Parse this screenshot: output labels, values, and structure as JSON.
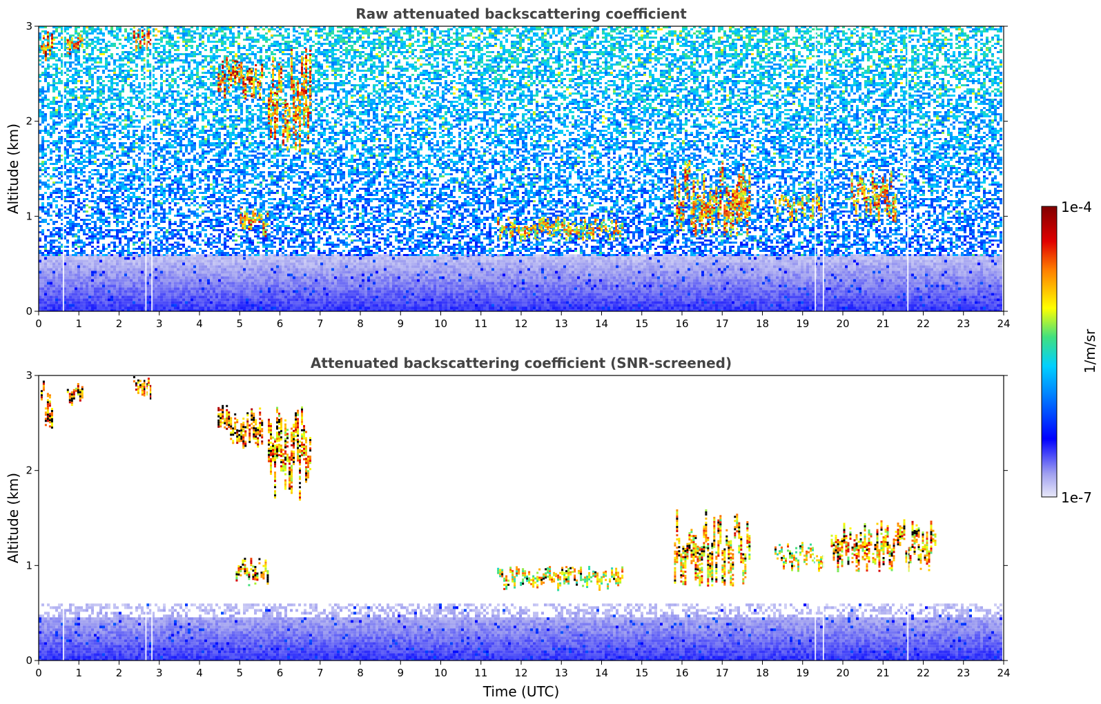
{
  "chart_data": [
    {
      "type": "heatmap",
      "title": "Raw attenuated backscattering coefficient",
      "xlabel": "",
      "ylabel": "Altitude (km)",
      "xlim": [
        0,
        24
      ],
      "ylim": [
        0,
        3
      ],
      "x_ticks": [
        "0",
        "1",
        "2",
        "3",
        "4",
        "5",
        "6",
        "7",
        "8",
        "9",
        "10",
        "11",
        "12",
        "13",
        "14",
        "15",
        "16",
        "17",
        "18",
        "19",
        "20",
        "21",
        "22",
        "23",
        "24"
      ],
      "y_ticks": [
        "0",
        "1",
        "2",
        "3"
      ],
      "features": [
        {
          "name": "surface layer",
          "time": [
            0,
            23.9
          ],
          "altitude": [
            0.0,
            0.06
          ],
          "level": 0.35
        },
        {
          "name": "boundary layer haze",
          "time": [
            0,
            23.9
          ],
          "altitude": [
            0.0,
            0.6
          ],
          "level": 0.12
        },
        {
          "name": "noise",
          "time": [
            0,
            23.9
          ],
          "altitude": [
            0.6,
            3.0
          ],
          "level": 0.3
        },
        {
          "name": "cloud",
          "time": [
            0.05,
            0.35
          ],
          "altitude": [
            2.55,
            2.95
          ],
          "level": 0.97
        },
        {
          "name": "cloud",
          "time": [
            0.7,
            1.1
          ],
          "altitude": [
            2.7,
            2.92
          ],
          "level": 0.95
        },
        {
          "name": "cloud",
          "time": [
            2.35,
            2.8
          ],
          "altitude": [
            2.75,
            3.0
          ],
          "level": 0.97
        },
        {
          "name": "cloud",
          "time": [
            4.45,
            5.55
          ],
          "altitude": [
            2.25,
            2.7
          ],
          "level": 0.97
        },
        {
          "name": "cloud",
          "time": [
            5.7,
            6.75
          ],
          "altitude": [
            1.7,
            2.8
          ],
          "level": 0.93
        },
        {
          "name": "cloud",
          "time": [
            5.0,
            5.7
          ],
          "altitude": [
            0.8,
            1.1
          ],
          "level": 0.9
        },
        {
          "name": "cloud",
          "time": [
            11.4,
            14.5
          ],
          "altitude": [
            0.75,
            1.0
          ],
          "level": 0.85
        },
        {
          "name": "cloud",
          "time": [
            15.8,
            17.7
          ],
          "altitude": [
            0.8,
            1.6
          ],
          "level": 0.9
        },
        {
          "name": "cloud",
          "time": [
            18.3,
            19.5
          ],
          "altitude": [
            0.95,
            1.25
          ],
          "level": 0.85
        },
        {
          "name": "cloud",
          "time": [
            20.2,
            21.3
          ],
          "altitude": [
            0.95,
            1.5
          ],
          "level": 0.9
        }
      ]
    },
    {
      "type": "heatmap",
      "title": "Attenuated backscattering coefficient (SNR-screened)",
      "xlabel": "Time (UTC)",
      "ylabel": "Altitude (km)",
      "xlim": [
        0,
        24
      ],
      "ylim": [
        0,
        3
      ],
      "x_ticks": [
        "0",
        "1",
        "2",
        "3",
        "4",
        "5",
        "6",
        "7",
        "8",
        "9",
        "10",
        "11",
        "12",
        "13",
        "14",
        "15",
        "16",
        "17",
        "18",
        "19",
        "20",
        "21",
        "22",
        "23",
        "24"
      ],
      "y_ticks": [
        "0",
        "1",
        "2",
        "3"
      ],
      "features": [
        {
          "name": "surface layer",
          "time": [
            0,
            23.9
          ],
          "altitude": [
            0.0,
            0.06
          ],
          "level": 0.35
        },
        {
          "name": "boundary layer",
          "time": [
            0,
            23.9
          ],
          "altitude": [
            0.0,
            0.6
          ],
          "level": 0.12
        },
        {
          "name": "cloud",
          "time": [
            0.05,
            0.35
          ],
          "altitude": [
            2.45,
            2.95
          ],
          "level": 0.97
        },
        {
          "name": "cloud",
          "time": [
            0.7,
            1.1
          ],
          "altitude": [
            2.7,
            2.92
          ],
          "level": 0.95
        },
        {
          "name": "cloud",
          "time": [
            2.35,
            2.8
          ],
          "altitude": [
            2.75,
            3.0
          ],
          "level": 0.97
        },
        {
          "name": "cloud",
          "time": [
            4.45,
            5.55
          ],
          "altitude": [
            2.25,
            2.7
          ],
          "level": 0.97
        },
        {
          "name": "cloud",
          "time": [
            5.7,
            6.75
          ],
          "altitude": [
            1.7,
            2.8
          ],
          "level": 0.93
        },
        {
          "name": "cloud",
          "time": [
            4.9,
            5.7
          ],
          "altitude": [
            0.8,
            1.1
          ],
          "level": 0.9
        },
        {
          "name": "cloud",
          "time": [
            11.4,
            14.5
          ],
          "altitude": [
            0.75,
            1.0
          ],
          "level": 0.85
        },
        {
          "name": "cloud",
          "time": [
            15.8,
            17.7
          ],
          "altitude": [
            0.8,
            1.6
          ],
          "level": 0.9
        },
        {
          "name": "cloud",
          "time": [
            18.3,
            19.5
          ],
          "altitude": [
            0.95,
            1.25
          ],
          "level": 0.85
        },
        {
          "name": "cloud",
          "time": [
            19.7,
            22.3
          ],
          "altitude": [
            0.95,
            1.5
          ],
          "level": 0.9
        }
      ]
    }
  ],
  "colorbar": {
    "label": "1/m/sr",
    "min_label": "1e-7",
    "max_label": "1e-4",
    "scale": "log",
    "range": [
      1e-07,
      0.0001
    ],
    "colors": [
      "#e8e8f8",
      "#0000ff",
      "#00c8ff",
      "#ffff00",
      "#ff8000",
      "#800000"
    ]
  }
}
